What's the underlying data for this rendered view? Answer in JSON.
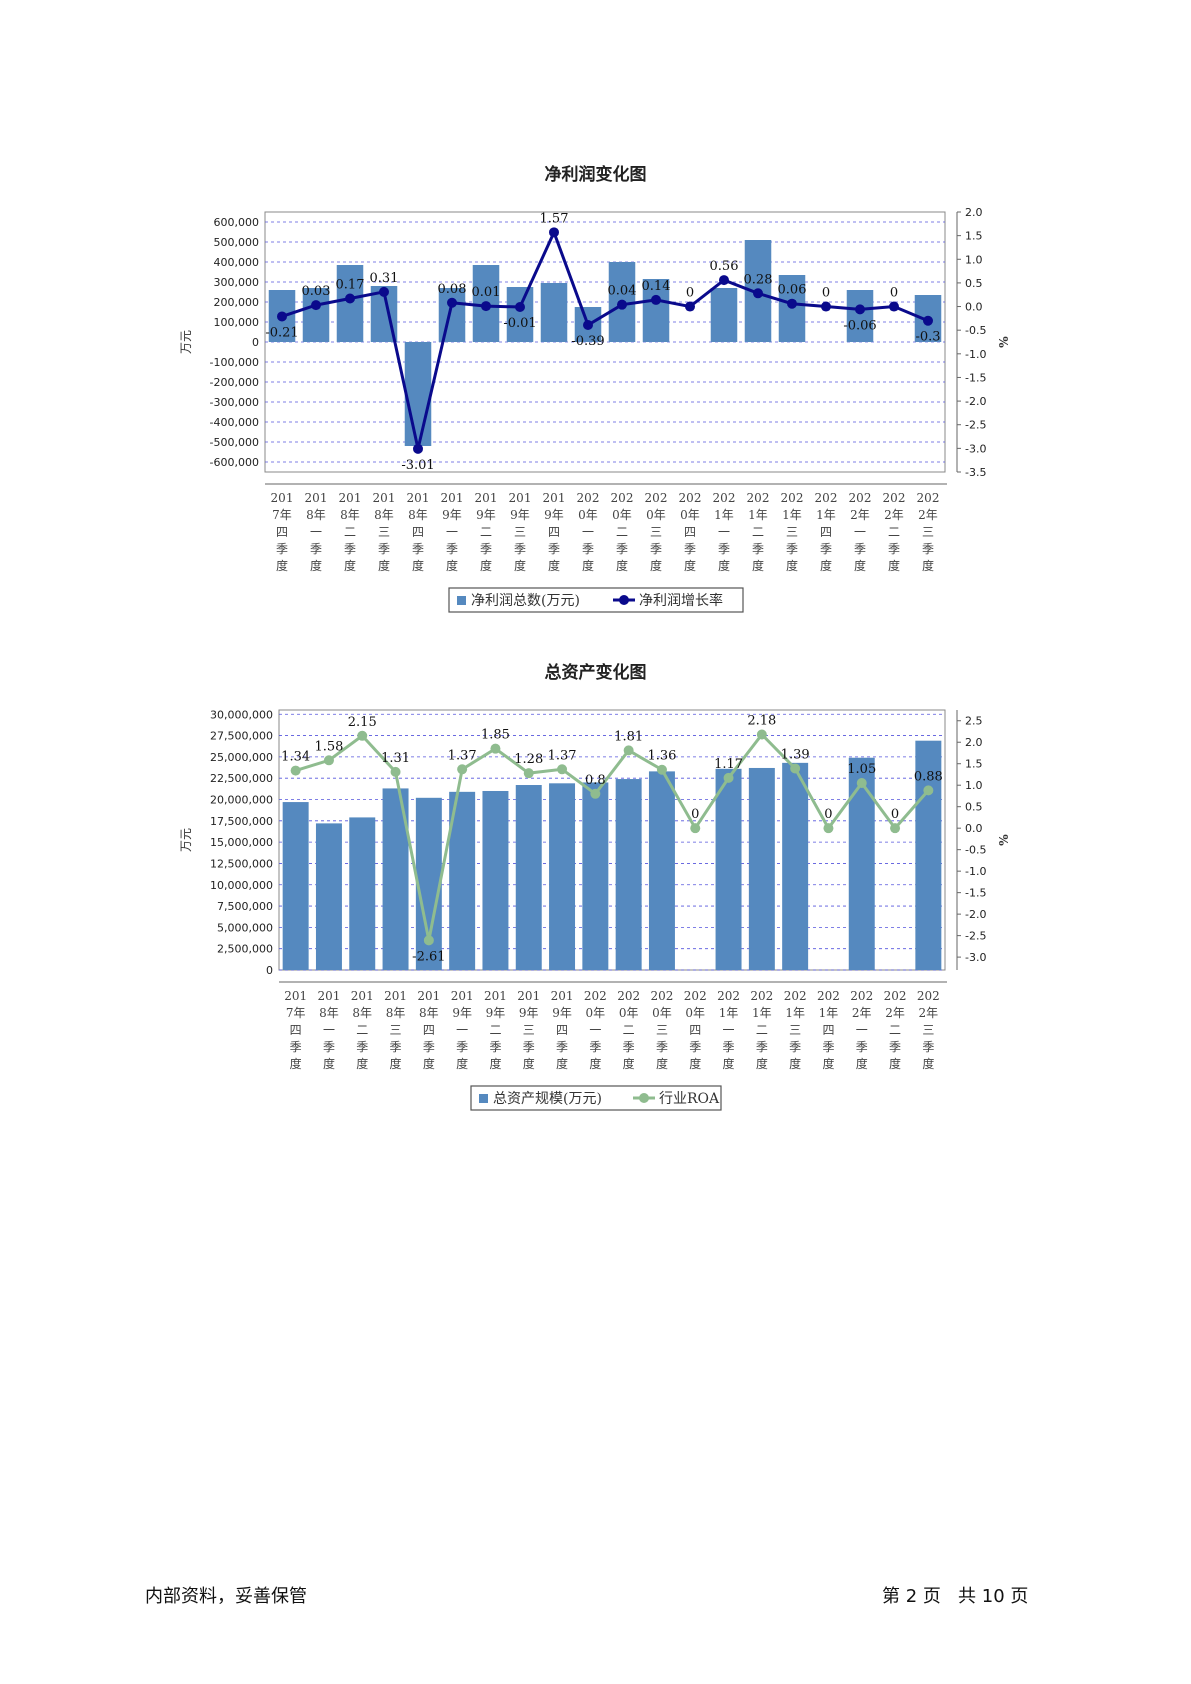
{
  "footer": {
    "left": "内部资料，妥善保管",
    "right": "第 2 页   共 10 页"
  },
  "chart_data": [
    {
      "type": "bar+line",
      "title": "净利润变化图",
      "ylabel_left": "万元",
      "ylabel_right": "%",
      "categories": [
        "2017年四季度",
        "2018年一季度",
        "2018年二季度",
        "2018年三季度",
        "2018年四季度",
        "2019年一季度",
        "2019年二季度",
        "2019年三季度",
        "2019年四季度",
        "2020年一季度",
        "2020年二季度",
        "2020年三季度",
        "2020年四季度",
        "2021年一季度",
        "2021年二季度",
        "2021年三季度",
        "2021年四季度",
        "2022年一季度",
        "2022年二季度",
        "2022年三季度"
      ],
      "category_lines": [
        [
          "201",
          "7年",
          "四",
          "季",
          "度"
        ],
        [
          "201",
          "8年",
          "一",
          "季",
          "度"
        ],
        [
          "201",
          "8年",
          "二",
          "季",
          "度"
        ],
        [
          "201",
          "8年",
          "三",
          "季",
          "度"
        ],
        [
          "201",
          "8年",
          "四",
          "季",
          "度"
        ],
        [
          "201",
          "9年",
          "一",
          "季",
          "度"
        ],
        [
          "201",
          "9年",
          "二",
          "季",
          "度"
        ],
        [
          "201",
          "9年",
          "三",
          "季",
          "度"
        ],
        [
          "201",
          "9年",
          "四",
          "季",
          "度"
        ],
        [
          "202",
          "0年",
          "一",
          "季",
          "度"
        ],
        [
          "202",
          "0年",
          "二",
          "季",
          "度"
        ],
        [
          "202",
          "0年",
          "三",
          "季",
          "度"
        ],
        [
          "202",
          "0年",
          "四",
          "季",
          "度"
        ],
        [
          "202",
          "1年",
          "一",
          "季",
          "度"
        ],
        [
          "202",
          "1年",
          "二",
          "季",
          "度"
        ],
        [
          "202",
          "1年",
          "三",
          "季",
          "度"
        ],
        [
          "202",
          "1年",
          "四",
          "季",
          "度"
        ],
        [
          "202",
          "2年",
          "一",
          "季",
          "度"
        ],
        [
          "202",
          "2年",
          "二",
          "季",
          "度"
        ],
        [
          "202",
          "2年",
          "三",
          "季",
          "度"
        ]
      ],
      "left_axis": {
        "min": -650000,
        "max": 650000,
        "ticks": [
          600000,
          500000,
          400000,
          300000,
          200000,
          100000,
          0,
          -100000,
          -200000,
          -300000,
          -400000,
          -500000,
          -600000
        ],
        "tick_labels": [
          "600,000",
          "500,000",
          "400,000",
          "300,000",
          "200,000",
          "100,000",
          "0",
          "-100,000",
          "-200,000",
          "-300,000",
          "-400,000",
          "-500,000",
          "-600,000"
        ]
      },
      "right_axis": {
        "min": -3.5,
        "max": 2.0,
        "ticks": [
          2.0,
          1.5,
          1.0,
          0.5,
          0.0,
          -0.5,
          -1.0,
          -1.5,
          -2.0,
          -2.5,
          -3.0,
          -3.5
        ],
        "tick_labels": [
          "2.0",
          "1.5",
          "1.0",
          "0.5",
          "0.0",
          "-0.5",
          "-1.0",
          "-1.5",
          "-2.0",
          "-2.5",
          "-3.0",
          "-3.5"
        ]
      },
      "grid": true,
      "bar_series": {
        "name": "净利润总数(万元)",
        "color": "#5589bf",
        "values": [
          260000,
          270000,
          385000,
          280000,
          -520000,
          270000,
          385000,
          275000,
          295000,
          175000,
          400000,
          315000,
          null,
          270000,
          510000,
          335000,
          null,
          260000,
          null,
          235000
        ]
      },
      "line_series": {
        "name": "净利润增长率",
        "color": "#0a0a8c",
        "values": [
          -0.21,
          0.03,
          0.17,
          0.31,
          -3.01,
          0.08,
          0.01,
          -0.01,
          1.57,
          -0.39,
          0.04,
          0.14,
          0,
          0.56,
          0.28,
          0.06,
          0,
          -0.06,
          0,
          -0.3
        ],
        "labels": [
          "-0.21",
          "0.03",
          "0.17",
          "0.31",
          "-3.01",
          "0.08",
          "0.01",
          "-0.01",
          "1.57",
          "-0.39",
          "0.04",
          "0.14",
          "0",
          "0.56",
          "0.28",
          "0.06",
          "0",
          "-0.06",
          "0",
          "-0.3"
        ]
      },
      "legend_position": "bottom"
    },
    {
      "type": "bar+line",
      "title": "总资产变化图",
      "ylabel_left": "万元",
      "ylabel_right": "%",
      "categories": [
        "2017年四季度",
        "2018年一季度",
        "2018年二季度",
        "2018年三季度",
        "2018年四季度",
        "2019年一季度",
        "2019年二季度",
        "2019年三季度",
        "2019年四季度",
        "2020年一季度",
        "2020年二季度",
        "2020年三季度",
        "2020年四季度",
        "2021年一季度",
        "2021年二季度",
        "2021年三季度",
        "2021年四季度",
        "2022年一季度",
        "2022年二季度",
        "2022年三季度"
      ],
      "category_lines": [
        [
          "201",
          "7年",
          "四",
          "季",
          "度"
        ],
        [
          "201",
          "8年",
          "一",
          "季",
          "度"
        ],
        [
          "201",
          "8年",
          "二",
          "季",
          "度"
        ],
        [
          "201",
          "8年",
          "三",
          "季",
          "度"
        ],
        [
          "201",
          "8年",
          "四",
          "季",
          "度"
        ],
        [
          "201",
          "9年",
          "一",
          "季",
          "度"
        ],
        [
          "201",
          "9年",
          "二",
          "季",
          "度"
        ],
        [
          "201",
          "9年",
          "三",
          "季",
          "度"
        ],
        [
          "201",
          "9年",
          "四",
          "季",
          "度"
        ],
        [
          "202",
          "0年",
          "一",
          "季",
          "度"
        ],
        [
          "202",
          "0年",
          "二",
          "季",
          "度"
        ],
        [
          "202",
          "0年",
          "三",
          "季",
          "度"
        ],
        [
          "202",
          "0年",
          "四",
          "季",
          "度"
        ],
        [
          "202",
          "1年",
          "一",
          "季",
          "度"
        ],
        [
          "202",
          "1年",
          "二",
          "季",
          "度"
        ],
        [
          "202",
          "1年",
          "三",
          "季",
          "度"
        ],
        [
          "202",
          "1年",
          "四",
          "季",
          "度"
        ],
        [
          "202",
          "2年",
          "一",
          "季",
          "度"
        ],
        [
          "202",
          "2年",
          "二",
          "季",
          "度"
        ],
        [
          "202",
          "2年",
          "三",
          "季",
          "度"
        ]
      ],
      "left_axis": {
        "min": 0,
        "max": 30500000,
        "ticks": [
          30000000,
          27500000,
          25000000,
          22500000,
          20000000,
          17500000,
          15000000,
          12500000,
          10000000,
          7500000,
          5000000,
          2500000,
          0
        ],
        "tick_labels": [
          "30,000,000",
          "27,500,000",
          "25,000,000",
          "22,500,000",
          "20,000,000",
          "17,500,000",
          "15,000,000",
          "12,500,000",
          "10,000,000",
          "7,500,000",
          "5,000,000",
          "2,500,000",
          "0"
        ]
      },
      "right_axis": {
        "min": -3.3,
        "max": 2.75,
        "ticks": [
          2.5,
          2.0,
          1.5,
          1.0,
          0.5,
          0.0,
          -0.5,
          -1.0,
          -1.5,
          -2.0,
          -2.5,
          -3.0
        ],
        "tick_labels": [
          "2.5",
          "2.0",
          "1.5",
          "1.0",
          "0.5",
          "0.0",
          "-0.5",
          "-1.0",
          "-1.5",
          "-2.0",
          "-2.5",
          "-3.0"
        ]
      },
      "grid": true,
      "bar_series": {
        "name": "总资产规模(万元)",
        "color": "#5589bf",
        "values": [
          19700000,
          17200000,
          17900000,
          21300000,
          20200000,
          20900000,
          21000000,
          21700000,
          21900000,
          22000000,
          22400000,
          23300000,
          null,
          23600000,
          23700000,
          24300000,
          null,
          24900000,
          null,
          26900000
        ]
      },
      "line_series": {
        "name": "行业ROA",
        "color": "#8fbc8f",
        "values": [
          1.34,
          1.58,
          2.15,
          1.31,
          -2.61,
          1.37,
          1.85,
          1.28,
          1.37,
          0.8,
          1.81,
          1.36,
          0,
          1.17,
          2.18,
          1.39,
          0,
          1.05,
          0,
          0.88
        ],
        "labels": [
          "1.34",
          "1.58",
          "2.15",
          "1.31",
          "-2.61",
          "1.37",
          "1.85",
          "1.28",
          "1.37",
          "0.8",
          "1.81",
          "1.36",
          "0",
          "1.17",
          "2.18",
          "1.39",
          "0",
          "1.05",
          "0",
          "0.88"
        ]
      },
      "legend_position": "bottom"
    }
  ]
}
